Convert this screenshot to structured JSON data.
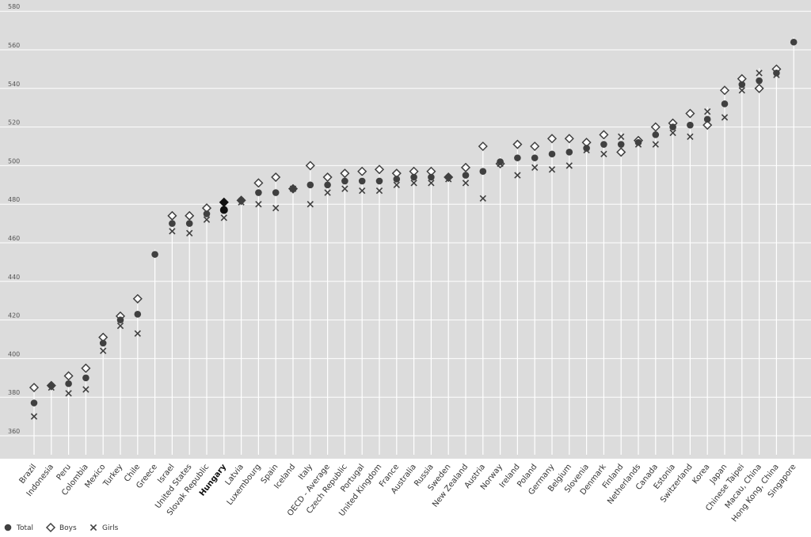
{
  "chart_data": {
    "type": "scatter",
    "title": "",
    "xlabel": "",
    "ylabel": "",
    "ylim": [
      350,
      590
    ],
    "yticks": [
      360,
      380,
      400,
      420,
      440,
      460,
      480,
      500,
      520,
      540,
      560,
      580
    ],
    "ytick_labels": [
      "360",
      "380",
      "400",
      "420",
      "440",
      "460",
      "480",
      "500",
      "520",
      "540",
      "560",
      "580"
    ],
    "grid": true,
    "legend_position": "bottom-left",
    "highlight_category": "Hungary",
    "categories": [
      "Brazil",
      "Indonesia",
      "Peru",
      "Colombia",
      "Mexico",
      "Turkey",
      "Chile",
      "Greece",
      "Israel",
      "United States",
      "Slovak Republic",
      "Hungary",
      "Latvia",
      "Luxembourg",
      "Spain",
      "Iceland",
      "Italy",
      "OECD - Average",
      "Czech Republic",
      "Portugal",
      "United Kingdom",
      "France",
      "Australia",
      "Russia",
      "Sweden",
      "New Zealand",
      "Austria",
      "Norway",
      "Ireland",
      "Poland",
      "Germany",
      "Belgium",
      "Slovenia",
      "Denmark",
      "Finland",
      "Netherlands",
      "Canada",
      "Estonia",
      "Switzerland",
      "Korea",
      "Japan",
      "Chinese Taipei",
      "Macau, China",
      "Hong Kong, China",
      "Singapore"
    ],
    "series": [
      {
        "name": "Total",
        "marker": "circle",
        "color": "#404040",
        "values": [
          377,
          386,
          387,
          390,
          408,
          420,
          423,
          454,
          470,
          470,
          475,
          477,
          482,
          486,
          486,
          488,
          490,
          490,
          492,
          492,
          492,
          493,
          494,
          494,
          494,
          495,
          497,
          502,
          504,
          504,
          506,
          507,
          509,
          511,
          511,
          512,
          516,
          520,
          521,
          524,
          532,
          542,
          544,
          548,
          564
        ]
      },
      {
        "name": "Boys",
        "marker": "diamond",
        "color": "#404040",
        "values": [
          385,
          386,
          391,
          395,
          411,
          422,
          431,
          null,
          474,
          474,
          478,
          481,
          482,
          491,
          494,
          488,
          500,
          494,
          496,
          497,
          498,
          496,
          497,
          497,
          494,
          499,
          510,
          501,
          511,
          510,
          514,
          514,
          512,
          516,
          507,
          513,
          520,
          522,
          527,
          521,
          539,
          545,
          540,
          550,
          null
        ]
      },
      {
        "name": "Girls",
        "marker": "x",
        "color": "#404040",
        "values": [
          370,
          385,
          382,
          384,
          404,
          417,
          413,
          null,
          466,
          465,
          472,
          473,
          481,
          480,
          478,
          488,
          480,
          486,
          488,
          487,
          487,
          490,
          491,
          491,
          493,
          491,
          483,
          501,
          495,
          499,
          498,
          500,
          508,
          506,
          515,
          511,
          511,
          517,
          515,
          528,
          525,
          539,
          548,
          547,
          null
        ]
      }
    ]
  }
}
